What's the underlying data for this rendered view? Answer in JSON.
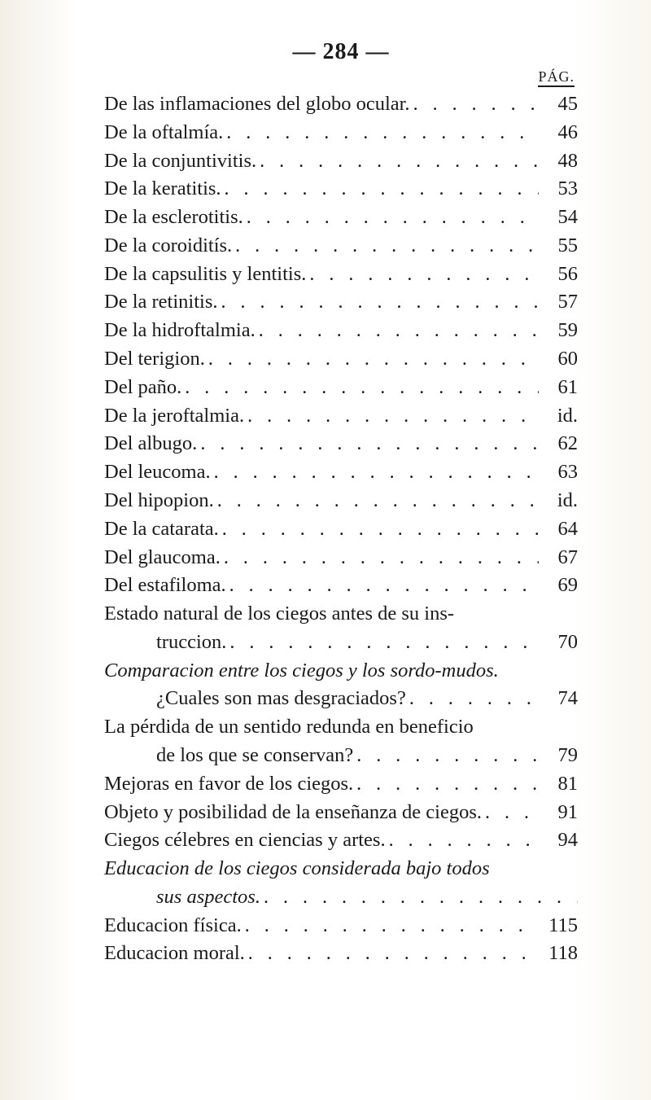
{
  "header": "— 284 —",
  "pag_label": "PÁG.",
  "dots": ". . . . . . . . . . . . . . . . . . . . . . . . . . . . . . . . . . . . . . . .",
  "entries": [
    {
      "label": "De las inflamaciones del globo ocular.",
      "page": "45",
      "indent": false
    },
    {
      "label": "De la oftalmía.",
      "page": "46",
      "indent": false
    },
    {
      "label": "De la conjuntivitis.",
      "page": "48",
      "indent": false
    },
    {
      "label": "De la keratitis.",
      "page": "53",
      "indent": false
    },
    {
      "label": "De la esclerotitis.",
      "page": "54",
      "indent": false
    },
    {
      "label": "De la coroiditís.",
      "page": "55",
      "indent": false
    },
    {
      "label": "De la capsulitis y lentitis.",
      "page": "56",
      "indent": false
    },
    {
      "label": "De la retinitis.",
      "page": "57",
      "indent": false
    },
    {
      "label": "De la hidroftalmia.",
      "page": "59",
      "indent": false
    },
    {
      "label": "Del terigion.",
      "page": "60",
      "indent": false
    },
    {
      "label": "Del paño.",
      "page": "61",
      "indent": false
    },
    {
      "label": "De la jeroftalmia.",
      "page": "id.",
      "indent": false
    },
    {
      "label": "Del albugo.",
      "page": "62",
      "indent": false
    },
    {
      "label": "Del leucoma.",
      "page": "63",
      "indent": false
    },
    {
      "label": "Del hipopion.",
      "page": "id.",
      "indent": false
    },
    {
      "label": "De la catarata.",
      "page": "64",
      "indent": false
    },
    {
      "label": "Del glaucoma.",
      "page": "67",
      "indent": false
    },
    {
      "label": "Del estafiloma.",
      "page": "69",
      "indent": false
    },
    {
      "label": "Estado natural de los ciegos antes de su ins-",
      "page": "",
      "indent": false,
      "nodots": true
    },
    {
      "label": "truccion.",
      "page": "70",
      "indent": true
    },
    {
      "label": "Comparacion entre los ciegos y los sordo-mudos.",
      "page": "",
      "indent": false,
      "italic": true,
      "nodots": true
    },
    {
      "label": "¿Cuales son mas desgraciados?",
      "page": "74",
      "indent": true
    },
    {
      "label": "La pérdida de un sentido redunda en beneficio",
      "page": "",
      "indent": false,
      "nodots": true
    },
    {
      "label": "de los que se conservan?",
      "page": "79",
      "indent": true
    },
    {
      "label": "Mejoras en favor de los ciegos.",
      "page": "81",
      "indent": false
    },
    {
      "label": "Objeto y posibilidad de la enseñanza de ciegos.",
      "page": "91",
      "indent": false
    },
    {
      "label": "Ciegos célebres en ciencias y artes.",
      "page": "94",
      "indent": false
    },
    {
      "label": "Educacion de los ciegos considerada bajo todos",
      "page": "",
      "indent": false,
      "italic": true,
      "nodots": true
    },
    {
      "label": "sus aspectos.",
      "page": "",
      "indent": true,
      "italic": true
    },
    {
      "label": "Educacion física.",
      "page": "115",
      "indent": false
    },
    {
      "label": "Educacion moral.",
      "page": "118",
      "indent": false
    }
  ]
}
